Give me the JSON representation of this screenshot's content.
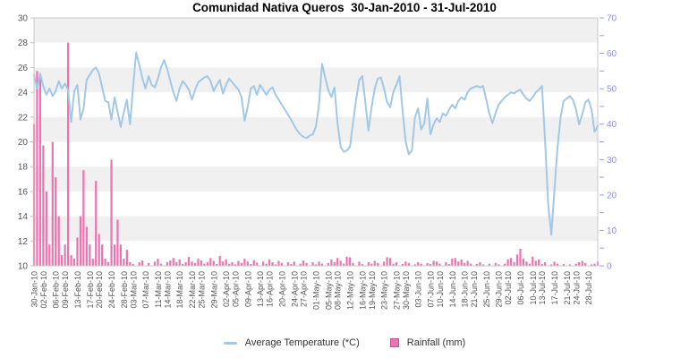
{
  "title": "Comunidad Nativa Queros  30-Jan-2010 - 31-Jul-2010",
  "legend": {
    "temperature_label": "Average Temperature (*C)",
    "rainfall_label": "Rainfall (mm)"
  },
  "colors": {
    "temperature_line": "#a2c8e8",
    "rainfall_bar": "#ee72b0",
    "rainfall_bar_border": "#c94f93",
    "band_gray": "#f0f0f0",
    "band_white": "#ffffff",
    "plot_border": "#c9c9c9",
    "left_axis_text": "#545454",
    "x_axis_text": "#545454",
    "right_axis_text": "#8f8fdd",
    "right_axis_tick": "#9b9be0",
    "left_axis_tick": "#c0c0c0",
    "title_text": "#000000",
    "legend_text": "#333333"
  },
  "chart_data": {
    "type": "line-bar-combo",
    "title": "Comunidad Nativa Queros  30-Jan-2010 - 31-Jul-2010",
    "start_date": "30-Jan-2010",
    "end_date": "31-Jul-2010",
    "days_span": 182,
    "grid_bands": "alternating gray/white every 2 degrees, gray starts at 30-28",
    "legend_position": "bottom-center",
    "left_axis": {
      "min": 10,
      "max": 30,
      "step": 2,
      "series": "Average Temperature (*C)"
    },
    "right_axis": {
      "min": 0,
      "max": 70,
      "step": 10,
      "minor_step": 5,
      "series": "Rainfall (mm)"
    },
    "x_tick_labels": [
      "30-Jan-10",
      "02-Feb-10",
      "06-Feb-10",
      "09-Feb-10",
      "13-Feb-10",
      "17-Feb-10",
      "20-Feb-10",
      "24-Feb-10",
      "28-Feb-10",
      "03-Mar-10",
      "07-Mar-10",
      "11-Mar-10",
      "14-Mar-10",
      "18-Mar-10",
      "22-Mar-10",
      "25-Mar-10",
      "29-Mar-10",
      "02-Apr-10",
      "05-Apr-10",
      "09-Apr-10",
      "13-Apr-10",
      "16-Apr-10",
      "20-Apr-10",
      "24-Apr-10",
      "27-Apr-10",
      "01-May-10",
      "05-May-10",
      "08-May-10",
      "12-May-10",
      "16-May-10",
      "19-May-10",
      "23-May-10",
      "27-May-10",
      "30-May-10",
      "03-Jun-10",
      "07-Jun-10",
      "10-Jun-10",
      "14-Jun-10",
      "18-Jun-10",
      "21-Jun-10",
      "25-Jun-10",
      "29-Jun-10",
      "02-Jul-10",
      "06-Jul-10",
      "10-Jul-10",
      "13-Jul-10",
      "17-Jul-10",
      "21-Jul-10",
      "24-Jul-10",
      "28-Jul-10"
    ],
    "x_tick_days": [
      0,
      3,
      7,
      10,
      14,
      18,
      21,
      25,
      29,
      32,
      36,
      40,
      43,
      47,
      51,
      54,
      58,
      62,
      65,
      69,
      73,
      76,
      80,
      84,
      87,
      91,
      95,
      98,
      102,
      106,
      109,
      113,
      117,
      120,
      124,
      128,
      131,
      135,
      139,
      142,
      146,
      150,
      153,
      157,
      161,
      164,
      168,
      172,
      175,
      179
    ],
    "series": [
      {
        "name": "Average Temperature (*C)",
        "type": "line",
        "axis": "left",
        "color": "#a2c8e8",
        "values": [
          25.4,
          24.3,
          25.5,
          24.5,
          23.8,
          24.3,
          23.7,
          24.1,
          24.9,
          24.3,
          24.7,
          24.2,
          21.6,
          24.1,
          24.6,
          21.8,
          22.7,
          25.0,
          25.4,
          25.8,
          26.0,
          25.5,
          24.4,
          23.3,
          23.2,
          21.8,
          23.6,
          22.4,
          21.2,
          22.4,
          23.4,
          21.4,
          24.5,
          27.2,
          26.2,
          25.1,
          24.3,
          25.3,
          24.6,
          24.4,
          25.1,
          26.0,
          26.6,
          25.9,
          24.9,
          24.0,
          23.3,
          24.3,
          24.9,
          24.6,
          24.2,
          23.4,
          24.2,
          24.8,
          25.0,
          25.2,
          25.3,
          24.9,
          24.1,
          24.6,
          25.0,
          23.9,
          24.6,
          25.1,
          24.8,
          24.5,
          24.2,
          23.6,
          21.7,
          22.8,
          24.3,
          24.5,
          23.8,
          24.6,
          24.2,
          23.8,
          24.2,
          24.4,
          23.8,
          23.4,
          23.0,
          22.6,
          22.2,
          21.8,
          21.3,
          20.9,
          20.6,
          20.4,
          20.3,
          20.5,
          20.6,
          21.2,
          23.0,
          26.3,
          25.2,
          24.2,
          23.6,
          24.4,
          21.5,
          19.6,
          19.2,
          19.3,
          19.6,
          21.5,
          23.4,
          25.0,
          25.3,
          23.1,
          20.9,
          22.8,
          24.3,
          25.1,
          25.2,
          24.3,
          23.2,
          22.8,
          24.0,
          24.6,
          25.3,
          22.5,
          20.0,
          19.0,
          19.3,
          22.0,
          22.7,
          21.0,
          21.5,
          23.5,
          20.6,
          21.4,
          21.9,
          21.6,
          22.3,
          22.1,
          22.6,
          23.0,
          22.7,
          23.3,
          23.6,
          23.4,
          24.0,
          24.3,
          24.4,
          24.5,
          24.4,
          24.5,
          23.4,
          22.3,
          21.5,
          22.3,
          23.0,
          23.3,
          23.6,
          23.8,
          24.0,
          23.9,
          24.1,
          24.2,
          23.8,
          23.5,
          23.3,
          23.6,
          24.0,
          24.2,
          24.5,
          20.0,
          15.0,
          12.5,
          16.0,
          19.5,
          22.0,
          23.3,
          23.5,
          23.7,
          23.4,
          22.6,
          21.4,
          22.2,
          23.2,
          23.4,
          22.6,
          20.8,
          21.3
        ]
      },
      {
        "name": "Rainfall (mm)",
        "type": "bar",
        "axis": "right",
        "color": "#ee72b0",
        "values": [
          40,
          55,
          54,
          34,
          21,
          6,
          35,
          25,
          14,
          3,
          6,
          63,
          3,
          2,
          8,
          14,
          27,
          11,
          6,
          2,
          24,
          9,
          6,
          2,
          1,
          30,
          6,
          13,
          6,
          2,
          4.5,
          1,
          0.5,
          0,
          1,
          1.5,
          0,
          0.8,
          0,
          1.2,
          2,
          0.6,
          0,
          1,
          1.5,
          2.2,
          1,
          1.8,
          0.5,
          1,
          2.5,
          1.2,
          0.8,
          2,
          1.5,
          0.6,
          1,
          2.2,
          1.4,
          0.5,
          2.8,
          1.2,
          1.8,
          0.6,
          1,
          0.4,
          1.4,
          0.8,
          2,
          1.2,
          0.5,
          1.6,
          0.9,
          0,
          1.2,
          0.6,
          1.8,
          1,
          0.4,
          1.4,
          0.8,
          0,
          1,
          0.5,
          1.2,
          0,
          0.6,
          1.5,
          0.8,
          0,
          1,
          0.4,
          1.2,
          0.6,
          0,
          0.8,
          1.8,
          1,
          2.2,
          1.4,
          0.6,
          2.6,
          2.4,
          0.8,
          0,
          1.2,
          0.5,
          0,
          1,
          0.6,
          1.4,
          0.8,
          0,
          1.2,
          2.4,
          2.2,
          0.6,
          1,
          0,
          0.5,
          1.2,
          0.8,
          0,
          0.4,
          1,
          0.6,
          0,
          0.8,
          0.5,
          1.4,
          1.2,
          0.6,
          0,
          1,
          0.5,
          2,
          2.2,
          1.2,
          1.8,
          0.8,
          1.4,
          0.6,
          0,
          0.5,
          1,
          0.4,
          0,
          0.6,
          0,
          0.8,
          0.4,
          0,
          0.6,
          1.8,
          2.2,
          1,
          3.2,
          4.8,
          2,
          1.2,
          0.6,
          2.6,
          1.4,
          1.8,
          0.5,
          1,
          0,
          0.4,
          1.2,
          0.6,
          0,
          0.5,
          0,
          0.4,
          0,
          0.6,
          1,
          1.4,
          0.8,
          0,
          0.4,
          0.6,
          1.2
        ]
      }
    ]
  }
}
